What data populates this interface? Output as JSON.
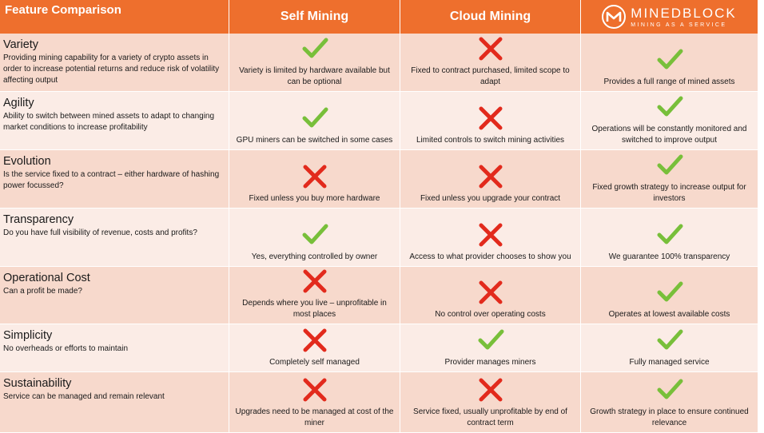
{
  "header": {
    "feature": "Feature Comparison",
    "self": "Self Mining",
    "cloud": "Cloud Mining",
    "brand_name": "MINEDBLOCK",
    "brand_tagline": "MINING AS A SERVICE"
  },
  "colors": {
    "header": "#ee6f2d",
    "check": "#78bf3a",
    "cross": "#e22a1c",
    "row_dark": "#f7d9cc",
    "row_light": "#fbece6"
  },
  "rows": [
    {
      "name": "Variety",
      "desc": "Providing mining capability for a variety of crypto assets in order to increase potential returns and reduce risk of volatility affecting output",
      "self": {
        "mark": "check",
        "text": "Variety is limited by hardware available but can be optional"
      },
      "cloud": {
        "mark": "cross",
        "text": "Fixed to contract purchased, limited scope to adapt"
      },
      "mb": {
        "mark": "check",
        "text": "Provides a full range of mined assets"
      }
    },
    {
      "name": "Agility",
      "desc": "Ability to switch between mined assets to adapt to changing market conditions to increase profitability",
      "self": {
        "mark": "check",
        "text": "GPU miners can be switched in some cases"
      },
      "cloud": {
        "mark": "cross",
        "text": "Limited controls to switch mining activities"
      },
      "mb": {
        "mark": "check",
        "text": "Operations will be constantly monitored and switched to improve output"
      }
    },
    {
      "name": "Evolution",
      "desc": "Is the service fixed to a contract – either hardware of hashing power focussed?",
      "self": {
        "mark": "cross",
        "text": "Fixed unless you buy more hardware"
      },
      "cloud": {
        "mark": "cross",
        "text": "Fixed unless you upgrade your contract"
      },
      "mb": {
        "mark": "check",
        "text": "Fixed growth strategy to increase output for investors"
      }
    },
    {
      "name": "Transparency",
      "desc": "Do you have full visibility of revenue, costs and profits?",
      "self": {
        "mark": "check",
        "text": "Yes, everything controlled by owner"
      },
      "cloud": {
        "mark": "cross",
        "text": "Access to what provider chooses to show you"
      },
      "mb": {
        "mark": "check",
        "text": "We guarantee 100% transparency"
      }
    },
    {
      "name": "Operational Cost",
      "desc": "Can a profit be made?",
      "self": {
        "mark": "cross",
        "text": "Depends where you live – unprofitable in most places"
      },
      "cloud": {
        "mark": "cross",
        "text": "No control over operating costs"
      },
      "mb": {
        "mark": "check",
        "text": "Operates at lowest available costs"
      }
    },
    {
      "name": "Simplicity",
      "desc": "No overheads or efforts to maintain",
      "self": {
        "mark": "cross",
        "text": "Completely self managed"
      },
      "cloud": {
        "mark": "check",
        "text": "Provider manages miners"
      },
      "mb": {
        "mark": "check",
        "text": "Fully managed service"
      }
    },
    {
      "name": "Sustainability",
      "desc": "Service can be managed and remain relevant",
      "self": {
        "mark": "cross",
        "text": "Upgrades need to be managed at cost of the miner"
      },
      "cloud": {
        "mark": "cross",
        "text": "Service fixed, usually unprofitable by end of contract term"
      },
      "mb": {
        "mark": "check",
        "text": "Growth strategy in place to ensure continued relevance"
      }
    }
  ]
}
